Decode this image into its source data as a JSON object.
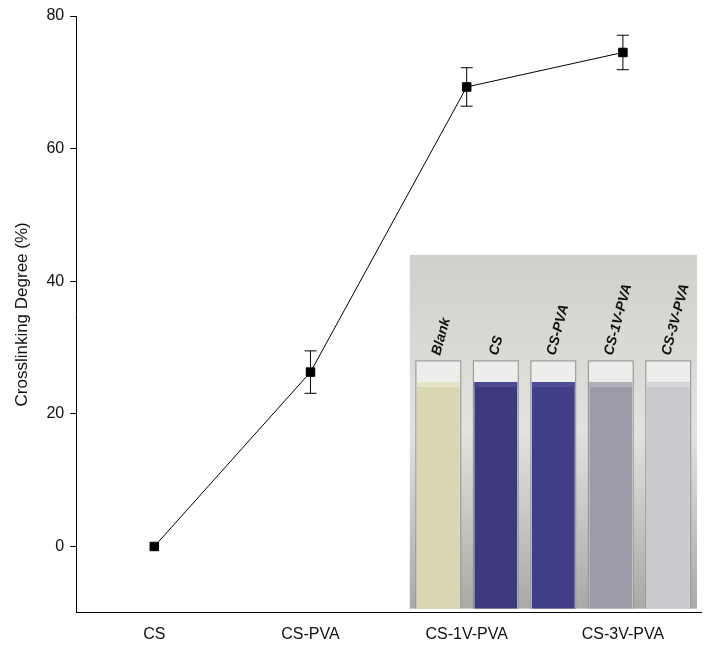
{
  "chart_data": {
    "type": "line",
    "y_label": "Crosslinking Degree (%)",
    "categories": [
      "CS",
      "CS-PVA",
      "CS-1V-PVA",
      "CS-3V-PVA"
    ],
    "values": [
      0,
      26.3,
      69.3,
      74.5
    ],
    "errors": [
      0,
      3.2,
      2.9,
      2.6
    ],
    "color": "#000000",
    "marker": "square",
    "line_style": "solid",
    "ylim": [
      -10,
      80
    ],
    "yticks": [
      0,
      20,
      40,
      60,
      80
    ],
    "grid": false,
    "photo_labels": [
      "Blank",
      "CS",
      "CS-PVA",
      "CS-1V-PVA",
      "CS-3V-PVA"
    ]
  }
}
